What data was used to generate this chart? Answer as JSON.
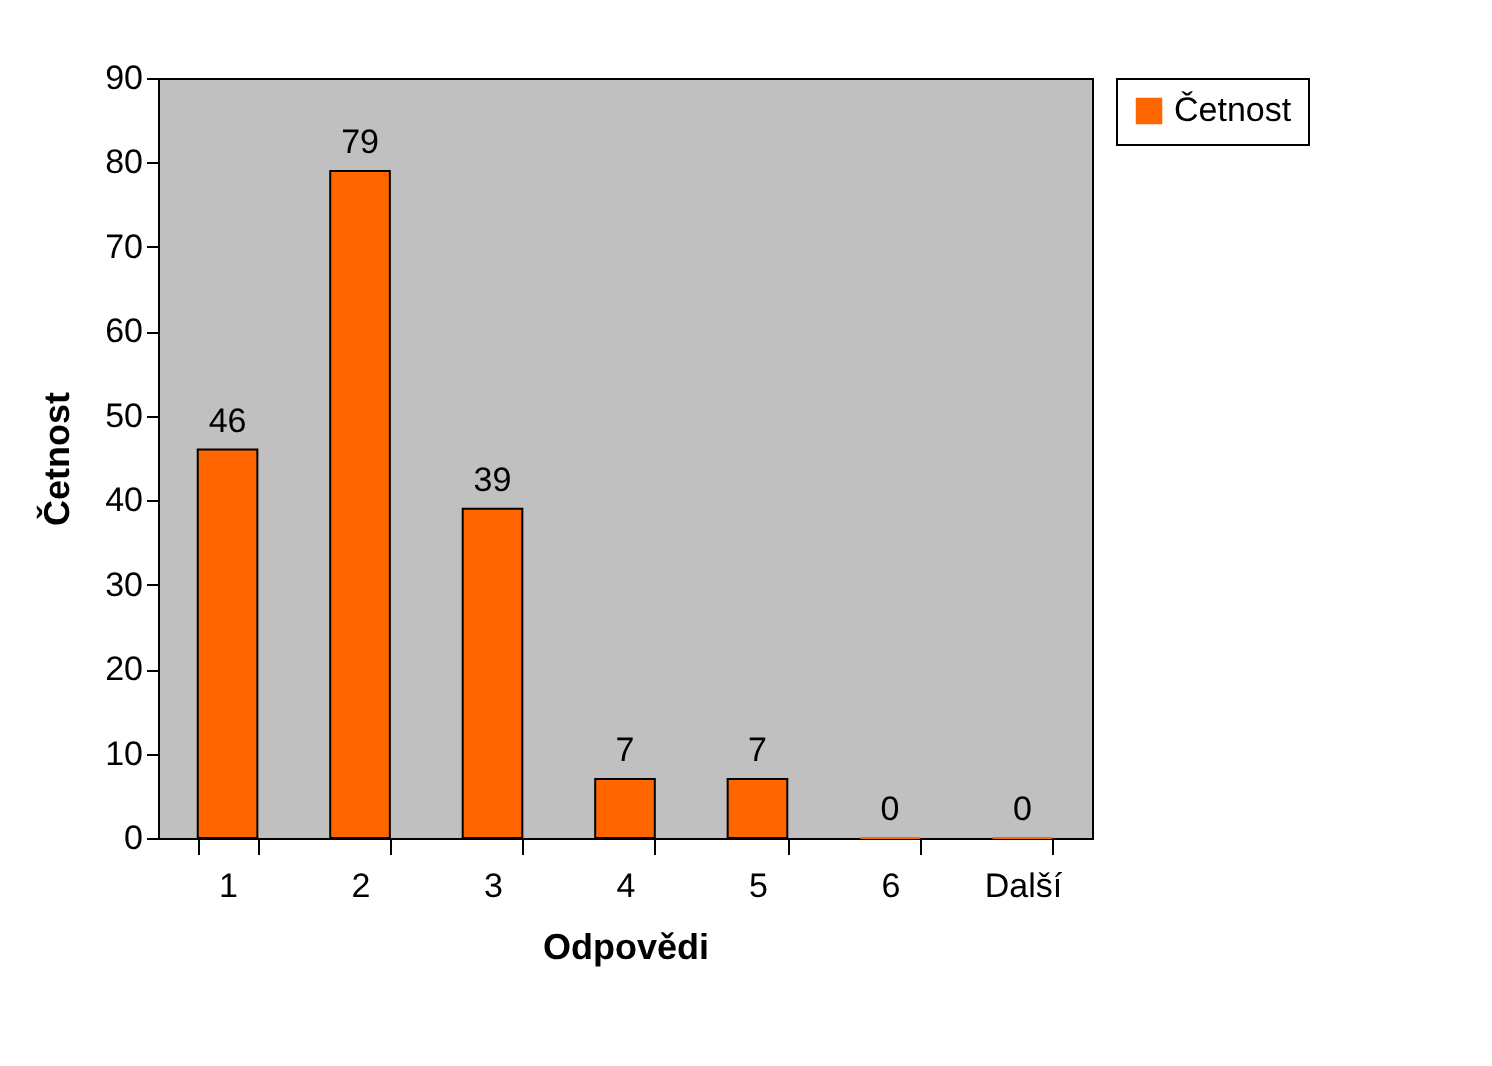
{
  "chart_data": {
    "type": "bar",
    "xlabel": "Odpovědi",
    "ylabel": "Četnost",
    "categories": [
      "1",
      "2",
      "3",
      "4",
      "5",
      "6",
      "Další"
    ],
    "series": [
      {
        "name": "Četnost",
        "color": "#ff6600",
        "values": [
          46,
          79,
          39,
          7,
          7,
          0,
          0
        ]
      }
    ],
    "ylim": [
      0,
      90
    ],
    "yticks": [
      0,
      10,
      20,
      30,
      40,
      50,
      60,
      70,
      80,
      90
    ],
    "grid": false,
    "legend": "right",
    "data_labels": true
  }
}
